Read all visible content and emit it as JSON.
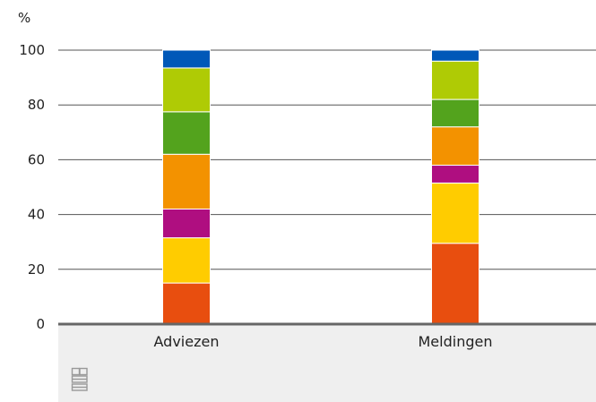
{
  "chart_data": {
    "type": "bar",
    "stacked": true,
    "y_unit_label": "%",
    "ylim": [
      0,
      100
    ],
    "yticks": [
      0,
      20,
      40,
      60,
      80,
      100
    ],
    "grid": true,
    "categories": [
      "Adviezen",
      "Meldingen"
    ],
    "series": [
      {
        "color": "#e84e0f",
        "values": [
          15,
          29.5
        ]
      },
      {
        "color": "#ffcc00",
        "values": [
          16.5,
          22
        ]
      },
      {
        "color": "#af0e80",
        "values": [
          10.5,
          6.5
        ]
      },
      {
        "color": "#f39200",
        "values": [
          20,
          14
        ]
      },
      {
        "color": "#53a31d",
        "values": [
          15.5,
          10
        ]
      },
      {
        "color": "#afcb05",
        "values": [
          16,
          14
        ]
      },
      {
        "color": "#0058b8",
        "values": [
          6.5,
          4
        ]
      }
    ]
  },
  "footer": {
    "logo_icon": "cbs-logo-icon"
  }
}
